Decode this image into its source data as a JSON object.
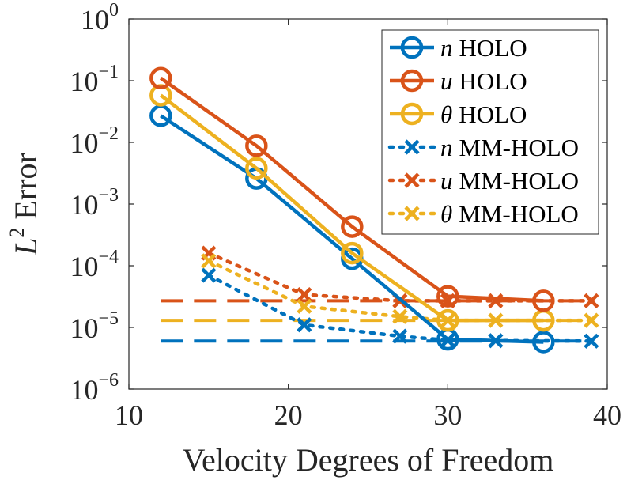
{
  "chart_data": {
    "type": "line",
    "title": "",
    "xlabel": "Velocity Degrees of Freedom",
    "ylabel": "L² Error",
    "ylabel_base": "L",
    "ylabel_sup": "2",
    "ylabel_rest": " Error",
    "xlim": [
      10,
      40
    ],
    "ylim": [
      1e-06,
      1
    ],
    "yscale": "log",
    "grid": false,
    "legend_position": "top-right",
    "xticks": [
      {
        "value": 10,
        "label": "10"
      },
      {
        "value": 20,
        "label": "20"
      },
      {
        "value": 30,
        "label": "30"
      },
      {
        "value": 40,
        "label": "40"
      }
    ],
    "yticks": [
      {
        "value": 1,
        "base": "10",
        "exp": "0"
      },
      {
        "value": 0.1,
        "base": "10",
        "exp": "−1"
      },
      {
        "value": 0.01,
        "base": "10",
        "exp": "−2"
      },
      {
        "value": 0.001,
        "base": "10",
        "exp": "−3"
      },
      {
        "value": 0.0001,
        "base": "10",
        "exp": "−4"
      },
      {
        "value": 1e-05,
        "base": "10",
        "exp": "−5"
      },
      {
        "value": 1e-06,
        "base": "10",
        "exp": "−6"
      }
    ],
    "series": [
      {
        "name": "n HOLO",
        "sym": "n",
        "text": "HOLO",
        "color": "#0072BD",
        "style": "solid",
        "marker": "circle",
        "x": [
          12,
          18,
          24,
          30,
          36
        ],
        "y": [
          0.027,
          0.0026,
          0.00013,
          6.4e-06,
          5.8e-06
        ]
      },
      {
        "name": "u HOLO",
        "sym": "u",
        "text": "HOLO",
        "color": "#D95319",
        "style": "solid",
        "marker": "circle",
        "x": [
          12,
          18,
          24,
          30,
          36
        ],
        "y": [
          0.11,
          0.0088,
          0.00043,
          3.2e-05,
          2.7e-05
        ]
      },
      {
        "name": "θ HOLO",
        "sym": "θ",
        "text": "HOLO",
        "color": "#EDB120",
        "style": "solid",
        "marker": "circle",
        "x": [
          12,
          18,
          24,
          30,
          36
        ],
        "y": [
          0.058,
          0.0038,
          0.00016,
          1.3e-05,
          1.3e-05
        ]
      },
      {
        "name": "n MM-HOLO",
        "sym": "n",
        "text": "MM-HOLO",
        "color": "#0072BD",
        "style": "dotted",
        "marker": "x",
        "x": [
          15,
          21,
          27,
          30,
          33,
          39
        ],
        "y": [
          7e-05,
          1.1e-05,
          7.2e-06,
          6.2e-06,
          6.1e-06,
          6e-06
        ]
      },
      {
        "name": "u MM-HOLO",
        "sym": "u",
        "text": "MM-HOLO",
        "color": "#D95319",
        "style": "dotted",
        "marker": "x",
        "x": [
          15,
          21,
          27,
          30,
          33,
          39
        ],
        "y": [
          0.00016,
          3.4e-05,
          2.7e-05,
          2.7e-05,
          2.7e-05,
          2.7e-05
        ]
      },
      {
        "name": "θ MM-HOLO",
        "sym": "θ",
        "text": "MM-HOLO",
        "color": "#EDB120",
        "style": "dotted",
        "marker": "x",
        "x": [
          15,
          21,
          27,
          30,
          33,
          39
        ],
        "y": [
          0.00012,
          2.2e-05,
          1.5e-05,
          1.3e-05,
          1.3e-05,
          1.3e-05
        ]
      }
    ],
    "reference_lines": [
      {
        "name": "u reference",
        "color": "#D95319",
        "style": "dashed",
        "x": [
          12,
          39
        ],
        "y": 2.7e-05
      },
      {
        "name": "θ reference",
        "color": "#EDB120",
        "style": "dashed",
        "x": [
          12,
          39
        ],
        "y": 1.3e-05
      },
      {
        "name": "n reference",
        "color": "#0072BD",
        "style": "dashed",
        "x": [
          12,
          39
        ],
        "y": 6e-06
      }
    ]
  }
}
